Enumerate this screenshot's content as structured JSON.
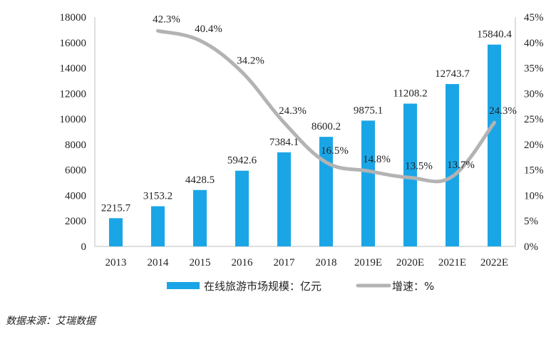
{
  "chart_data": {
    "type": "bar",
    "categories": [
      "2013",
      "2014",
      "2015",
      "2016",
      "2017",
      "2018",
      "2019E",
      "2020E",
      "2021E",
      "2022E"
    ],
    "series": [
      {
        "name": "在线旅游市场规模：亿元",
        "type": "bar",
        "axis": "left",
        "color": "#1aa6e6",
        "values": [
          2215.7,
          3153.2,
          4428.5,
          5942.6,
          7384.1,
          8600.2,
          9875.1,
          11208.2,
          12743.7,
          15840.4
        ],
        "labels": [
          "2215.7",
          "3153.2",
          "4428.5",
          "5942.6",
          "7384.1",
          "8600.2",
          "9875.1",
          "11208.2",
          "12743.7",
          "15840.4"
        ]
      },
      {
        "name": "增速：%",
        "type": "line",
        "axis": "right",
        "color": "#b3b3b3",
        "values": [
          null,
          42.3,
          40.4,
          34.2,
          24.3,
          16.5,
          14.8,
          13.5,
          13.7,
          24.3
        ],
        "labels": [
          null,
          "42.3%",
          "40.4%",
          "34.2%",
          "24.3%",
          "16.5%",
          "14.8%",
          "13.5%",
          "13.7%",
          "24.3%"
        ]
      }
    ],
    "ylim_left": [
      0,
      18000
    ],
    "yticks_left": [
      "0",
      "2000",
      "4000",
      "6000",
      "8000",
      "10000",
      "12000",
      "14000",
      "16000",
      "18000"
    ],
    "ylim_right": [
      0,
      45
    ],
    "yticks_right": [
      "0%",
      "5%",
      "10%",
      "15%",
      "20%",
      "25%",
      "30%",
      "35%",
      "40%",
      "45%"
    ],
    "legend_placement": "bottom-center",
    "grid": false
  },
  "source_note": "数据来源：艾瑞数据"
}
